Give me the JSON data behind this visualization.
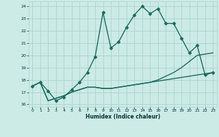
{
  "xlabel": "Humidex (Indice chaleur)",
  "bg_color": "#cceae6",
  "grid_color": "#aad4ce",
  "line_color": "#1a6b5a",
  "x_values": [
    0,
    1,
    2,
    3,
    4,
    5,
    6,
    7,
    8,
    9,
    10,
    11,
    12,
    13,
    14,
    15,
    16,
    17,
    18,
    19,
    20,
    21,
    22,
    23
  ],
  "main_line": [
    17.5,
    17.8,
    17.1,
    16.3,
    16.6,
    17.2,
    17.8,
    18.6,
    19.9,
    23.5,
    20.6,
    21.1,
    22.3,
    23.3,
    24.0,
    23.4,
    23.8,
    22.6,
    22.6,
    21.4,
    20.2,
    20.8,
    18.4,
    18.6
  ],
  "line2": [
    17.5,
    17.8,
    16.3,
    16.5,
    16.7,
    17.0,
    17.2,
    17.4,
    17.4,
    17.3,
    17.3,
    17.4,
    17.5,
    17.6,
    17.7,
    17.8,
    17.9,
    18.0,
    18.1,
    18.2,
    18.3,
    18.4,
    18.5,
    18.6
  ],
  "line3": [
    17.5,
    17.8,
    16.3,
    16.5,
    16.7,
    17.0,
    17.2,
    17.4,
    17.4,
    17.3,
    17.3,
    17.4,
    17.5,
    17.6,
    17.7,
    17.8,
    18.0,
    18.3,
    18.6,
    19.0,
    19.5,
    20.0,
    20.1,
    20.2
  ],
  "ylim": [
    15.8,
    24.4
  ],
  "xlim": [
    -0.5,
    23.5
  ],
  "yticks": [
    16,
    17,
    18,
    19,
    20,
    21,
    22,
    23,
    24
  ],
  "xticks": [
    0,
    1,
    2,
    3,
    4,
    5,
    6,
    7,
    8,
    9,
    10,
    11,
    12,
    13,
    14,
    15,
    16,
    17,
    18,
    19,
    20,
    21,
    22,
    23
  ],
  "marker": "D",
  "markersize": 2.5,
  "linewidth": 1.0
}
